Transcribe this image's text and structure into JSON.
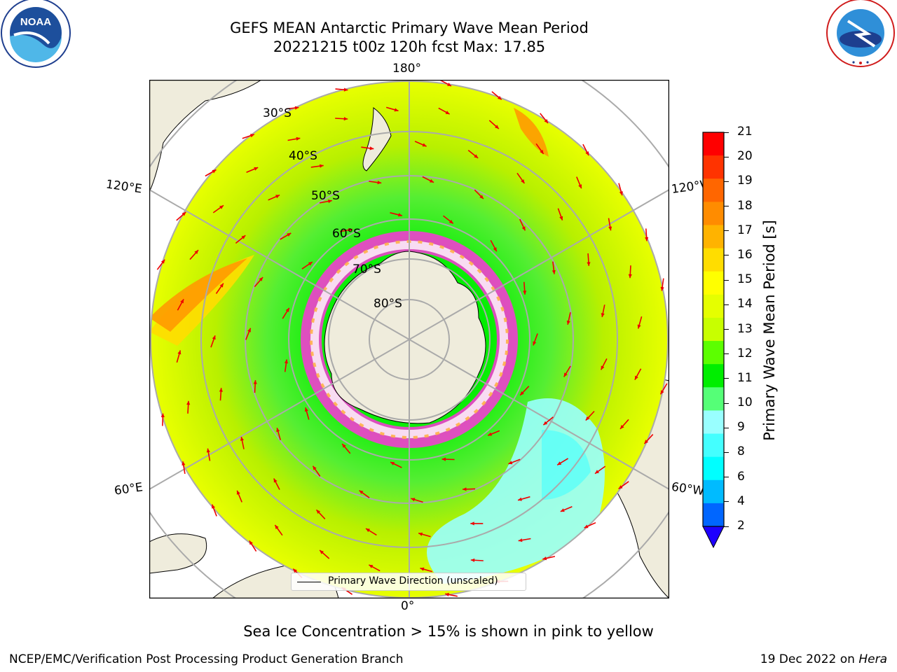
{
  "title": {
    "line1": "GEFS MEAN Antarctic Primary Wave Mean Period",
    "line2": "20221215 t00z 120h fcst   Max: 17.85"
  },
  "longitude_labels": {
    "top": "180°",
    "bottom": "0°",
    "upper_left": "120°E",
    "upper_right": "120°W",
    "lower_left": "60°E",
    "lower_right": "60°W"
  },
  "latitude_labels": [
    "30°S",
    "40°S",
    "50°S",
    "60°S",
    "70°S",
    "80°S"
  ],
  "legend": {
    "label": "Primary Wave Direction (unscaled)"
  },
  "colorbar": {
    "label": "Primary Wave Mean Period [s]",
    "ticks": [
      "21",
      "20",
      "19",
      "18",
      "17",
      "16",
      "15",
      "14",
      "13",
      "12",
      "11",
      "10",
      "9",
      "8",
      "6",
      "4",
      "2"
    ],
    "colors": [
      "#ff0000",
      "#ff3300",
      "#ff6600",
      "#ff8c00",
      "#ffb300",
      "#ffdd00",
      "#ffff00",
      "#e5ff00",
      "#c8ff00",
      "#5cff00",
      "#00ee00",
      "#55ff77",
      "#99ffff",
      "#44ffff",
      "#00ffff",
      "#00bbff",
      "#0066ff"
    ],
    "extend_color": "#1e00ff"
  },
  "caption": "Sea Ice Concentration > 15% is shown in pink to yellow",
  "footer": {
    "left": "NCEP/EMC/Verification Post Processing Product Generation Branch",
    "right_prefix": "19 Dec 2022 on ",
    "right_host": "Hera"
  },
  "logos": {
    "noaa": "NOAA",
    "nws": "NATIONAL WEATHER SERVICE"
  }
}
